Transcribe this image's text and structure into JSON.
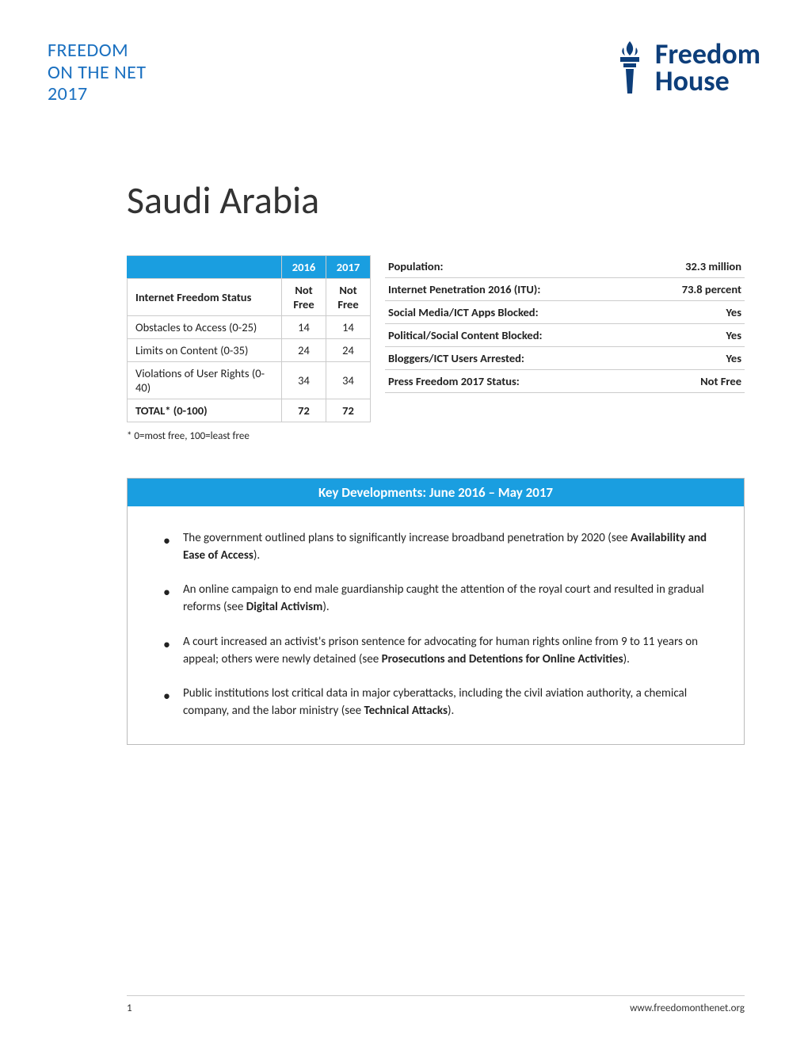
{
  "header": {
    "report_line1": "FREEDOM",
    "report_line2": "ON THE NET",
    "report_line3": "2017",
    "logo_line1": "Freedom",
    "logo_line2": "House",
    "logo_color": "#0d3e7a"
  },
  "country_title": "Saudi Arabia",
  "score_table": {
    "year1": "2016",
    "year2": "2017",
    "rows": [
      {
        "label": "Internet Freedom Status",
        "v1": "Not Free",
        "v2": "Not Free",
        "bold": true
      },
      {
        "label": "Obstacles to Access (0-25)",
        "v1": "14",
        "v2": "14",
        "bold": false
      },
      {
        "label": "Limits on Content (0-35)",
        "v1": "24",
        "v2": "24",
        "bold": false
      },
      {
        "label": "Violations of User Rights (0-40)",
        "v1": "34",
        "v2": "34",
        "bold": false
      },
      {
        "label": "TOTAL* (0-100)",
        "v1": "72",
        "v2": "72",
        "bold": true
      }
    ]
  },
  "stats_table": [
    {
      "label": "Population:",
      "value": "32.3 million"
    },
    {
      "label": "Internet Penetration 2016 (ITU):",
      "value": "73.8 percent"
    },
    {
      "label": "Social Media/ICT Apps Blocked:",
      "value": "Yes"
    },
    {
      "label": "Political/Social Content Blocked:",
      "value": "Yes"
    },
    {
      "label": "Bloggers/ICT Users Arrested:",
      "value": "Yes"
    },
    {
      "label": "Press Freedom 2017 Status:",
      "value": "Not Free"
    }
  ],
  "footnote": "* 0=most free, 100=least free",
  "key_dev": {
    "title": "Key Developments: June 2016 – May 2017",
    "items": [
      {
        "pre": "The government outlined plans to significantly increase broadband penetration by 2020 (see ",
        "bold": "Availability and Ease of Access",
        "post": ")."
      },
      {
        "pre": "An online campaign to end male guardianship caught the attention of the royal court and resulted in gradual reforms (see ",
        "bold": "Digital Activism",
        "post": ")."
      },
      {
        "pre": "A court increased an activist's prison sentence for advocating for human rights online from 9 to 11 years on appeal; others were newly detained (see ",
        "bold": "Prosecutions and Detentions for Online Activities",
        "post": ")."
      },
      {
        "pre": "Public institutions lost critical data in major cyberattacks, including the civil aviation authority, a chemical company, and the labor ministry (see ",
        "bold": "Technical Attacks",
        "post": ")."
      }
    ]
  },
  "footer": {
    "page_num": "1",
    "url": "www.freedomonthenet.org"
  },
  "colors": {
    "accent_blue": "#1a9ee0",
    "header_blue": "#1a70c0",
    "logo_navy": "#0d3e7a",
    "border_gray": "#cccccc"
  }
}
